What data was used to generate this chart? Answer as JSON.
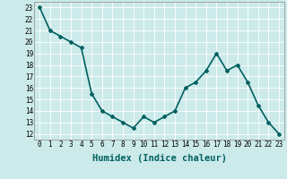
{
  "x": [
    0,
    1,
    2,
    3,
    4,
    5,
    6,
    7,
    8,
    9,
    10,
    11,
    12,
    13,
    14,
    15,
    16,
    17,
    18,
    19,
    20,
    21,
    22,
    23
  ],
  "y": [
    23.0,
    21.0,
    20.5,
    20.0,
    19.5,
    15.5,
    14.0,
    13.5,
    13.0,
    12.5,
    13.5,
    13.0,
    13.5,
    14.0,
    16.0,
    16.5,
    17.5,
    19.0,
    17.5,
    18.0,
    16.5,
    14.5,
    13.0,
    12.0
  ],
  "line_color": "#006060",
  "marker": "D",
  "marker_size": 2.0,
  "xlabel": "Humidex (Indice chaleur)",
  "ylabel_ticks": [
    12,
    13,
    14,
    15,
    16,
    17,
    18,
    19,
    20,
    21,
    22,
    23
  ],
  "xticks": [
    0,
    1,
    2,
    3,
    4,
    5,
    6,
    7,
    8,
    9,
    10,
    11,
    12,
    13,
    14,
    15,
    16,
    17,
    18,
    19,
    20,
    21,
    22,
    23
  ],
  "ylim": [
    11.5,
    23.5
  ],
  "xlim": [
    -0.5,
    23.5
  ],
  "background_color": "#cceaea",
  "grid_color": "#ffffff",
  "tick_fontsize": 5.5,
  "xlabel_fontsize": 7.5,
  "line_width": 1.2
}
